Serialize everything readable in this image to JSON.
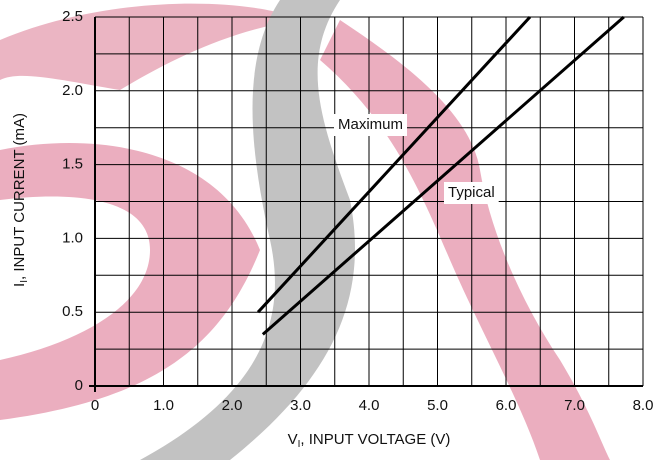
{
  "chart_data": {
    "type": "line",
    "x_label": {
      "symbol": "V",
      "subscript": "I",
      "text": ", INPUT VOLTAGE (V)"
    },
    "y_label": {
      "symbol": "I",
      "subscript": "I",
      "text": ", INPUT CURRENT (mA)"
    },
    "xlim": [
      0,
      8
    ],
    "ylim": [
      0,
      2.5
    ],
    "xticks": [
      0,
      {
        "value": 1,
        "label": "1.0"
      },
      {
        "value": 2,
        "label": "2.0"
      },
      {
        "value": 3,
        "label": "3.0"
      },
      {
        "value": 4,
        "label": "4.0"
      },
      {
        "value": 5,
        "label": "5.0"
      },
      {
        "value": 6,
        "label": "6.0"
      },
      {
        "value": 7,
        "label": "7.0"
      },
      {
        "value": 8,
        "label": "8.0"
      }
    ],
    "yticks": [
      0,
      0.5,
      {
        "value": 1,
        "label": "1.0"
      },
      1.5,
      {
        "value": 2,
        "label": "2.0"
      },
      2.5
    ],
    "grid": true,
    "minor_grid": true,
    "series": [
      {
        "name": "Maximum",
        "color": "#000000",
        "x": [
          2.38,
          6.35
        ],
        "values": [
          0.5,
          2.5
        ]
      },
      {
        "name": "Typical",
        "color": "#000000",
        "x": [
          2.45,
          7.72
        ],
        "values": [
          0.35,
          2.5
        ]
      }
    ]
  }
}
